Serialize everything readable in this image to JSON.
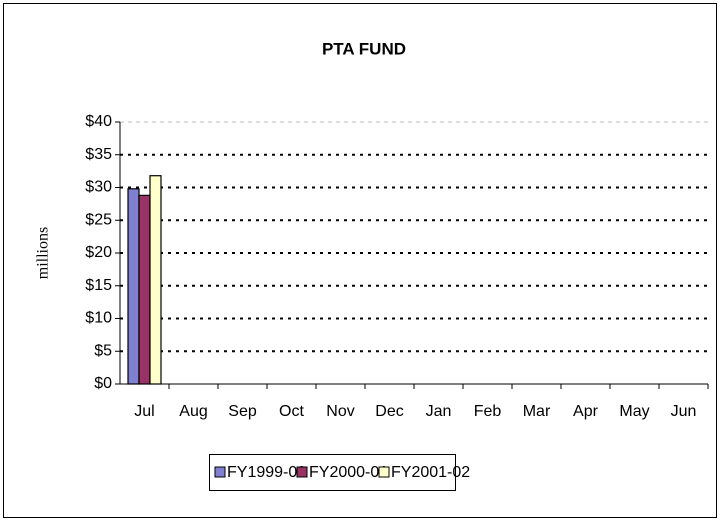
{
  "chart_data": {
    "type": "bar",
    "title": "PTA FUND",
    "y_label": "millions",
    "categories": [
      "Jul",
      "Aug",
      "Sep",
      "Oct",
      "Nov",
      "Dec",
      "Jan",
      "Feb",
      "Mar",
      "Apr",
      "May",
      "Jun"
    ],
    "series": [
      {
        "name": "FY1999-00",
        "color": "#8080d0",
        "values": [
          29.8,
          null,
          null,
          null,
          null,
          null,
          null,
          null,
          null,
          null,
          null,
          null
        ]
      },
      {
        "name": "FY2000-01",
        "color": "#993366",
        "values": [
          28.8,
          null,
          null,
          null,
          null,
          null,
          null,
          null,
          null,
          null,
          null,
          null
        ]
      },
      {
        "name": "FY2001-02",
        "color": "#ffffcc",
        "values": [
          31.8,
          null,
          null,
          null,
          null,
          null,
          null,
          null,
          null,
          null,
          null,
          null
        ]
      }
    ],
    "ylim": [
      0,
      40
    ],
    "yticks": [
      {
        "value": 0,
        "label": "$0"
      },
      {
        "value": 5,
        "label": "$5"
      },
      {
        "value": 10,
        "label": "$10"
      },
      {
        "value": 15,
        "label": "$15"
      },
      {
        "value": 20,
        "label": "$20"
      },
      {
        "value": 25,
        "label": "$25"
      },
      {
        "value": 30,
        "label": "$30"
      },
      {
        "value": 35,
        "label": "$35"
      },
      {
        "value": 40,
        "label": "$40"
      }
    ],
    "grid": true,
    "legend": "bottom"
  }
}
